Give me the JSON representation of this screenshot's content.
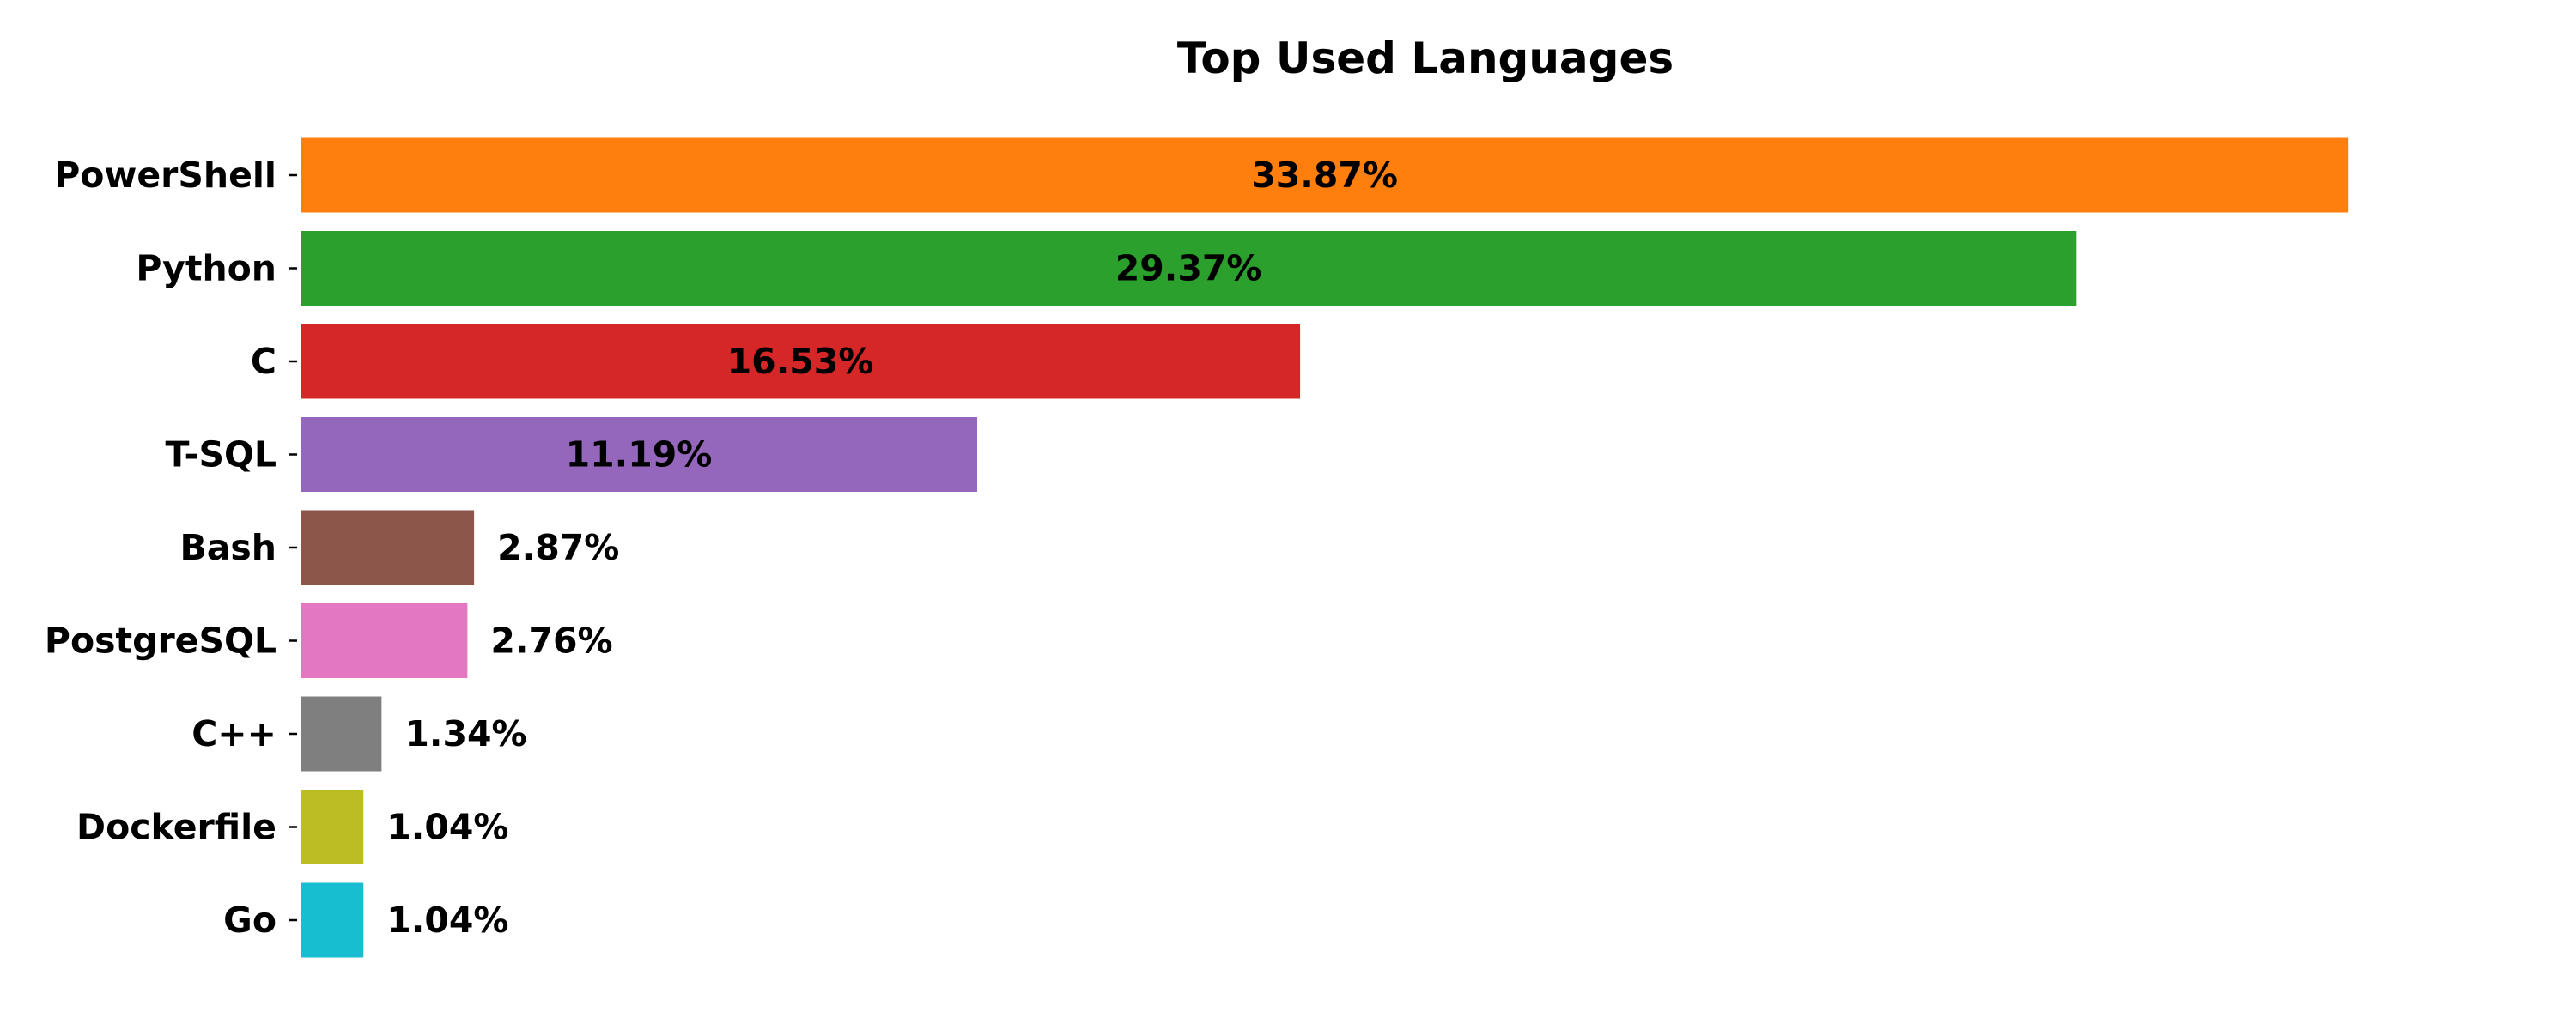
{
  "chart_data": {
    "type": "bar",
    "orientation": "horizontal",
    "title": "Top Used Languages",
    "xlabel": "",
    "ylabel": "",
    "xlim": [
      0,
      35.5
    ],
    "grid": false,
    "legend": "none",
    "value_suffix": "%",
    "categories": [
      "PowerShell",
      "Python",
      "C",
      "T-SQL",
      "Bash",
      "PostgreSQL",
      "C++",
      "Dockerfile",
      "Go"
    ],
    "values": [
      33.87,
      29.37,
      16.53,
      11.19,
      2.87,
      2.76,
      1.34,
      1.04,
      1.04
    ],
    "labels": [
      "33.87%",
      "29.37%",
      "16.53%",
      "11.19%",
      "2.87%",
      "2.76%",
      "1.34%",
      "1.04%",
      "1.04%"
    ],
    "colors": [
      "#ff7f0e",
      "#2ca02c",
      "#d62728",
      "#9467bd",
      "#8c564b",
      "#e377c2",
      "#7f7f7f",
      "#bcbd22",
      "#17becf"
    ],
    "label_position": "inside-center for long bars, outside-right for short bars"
  }
}
